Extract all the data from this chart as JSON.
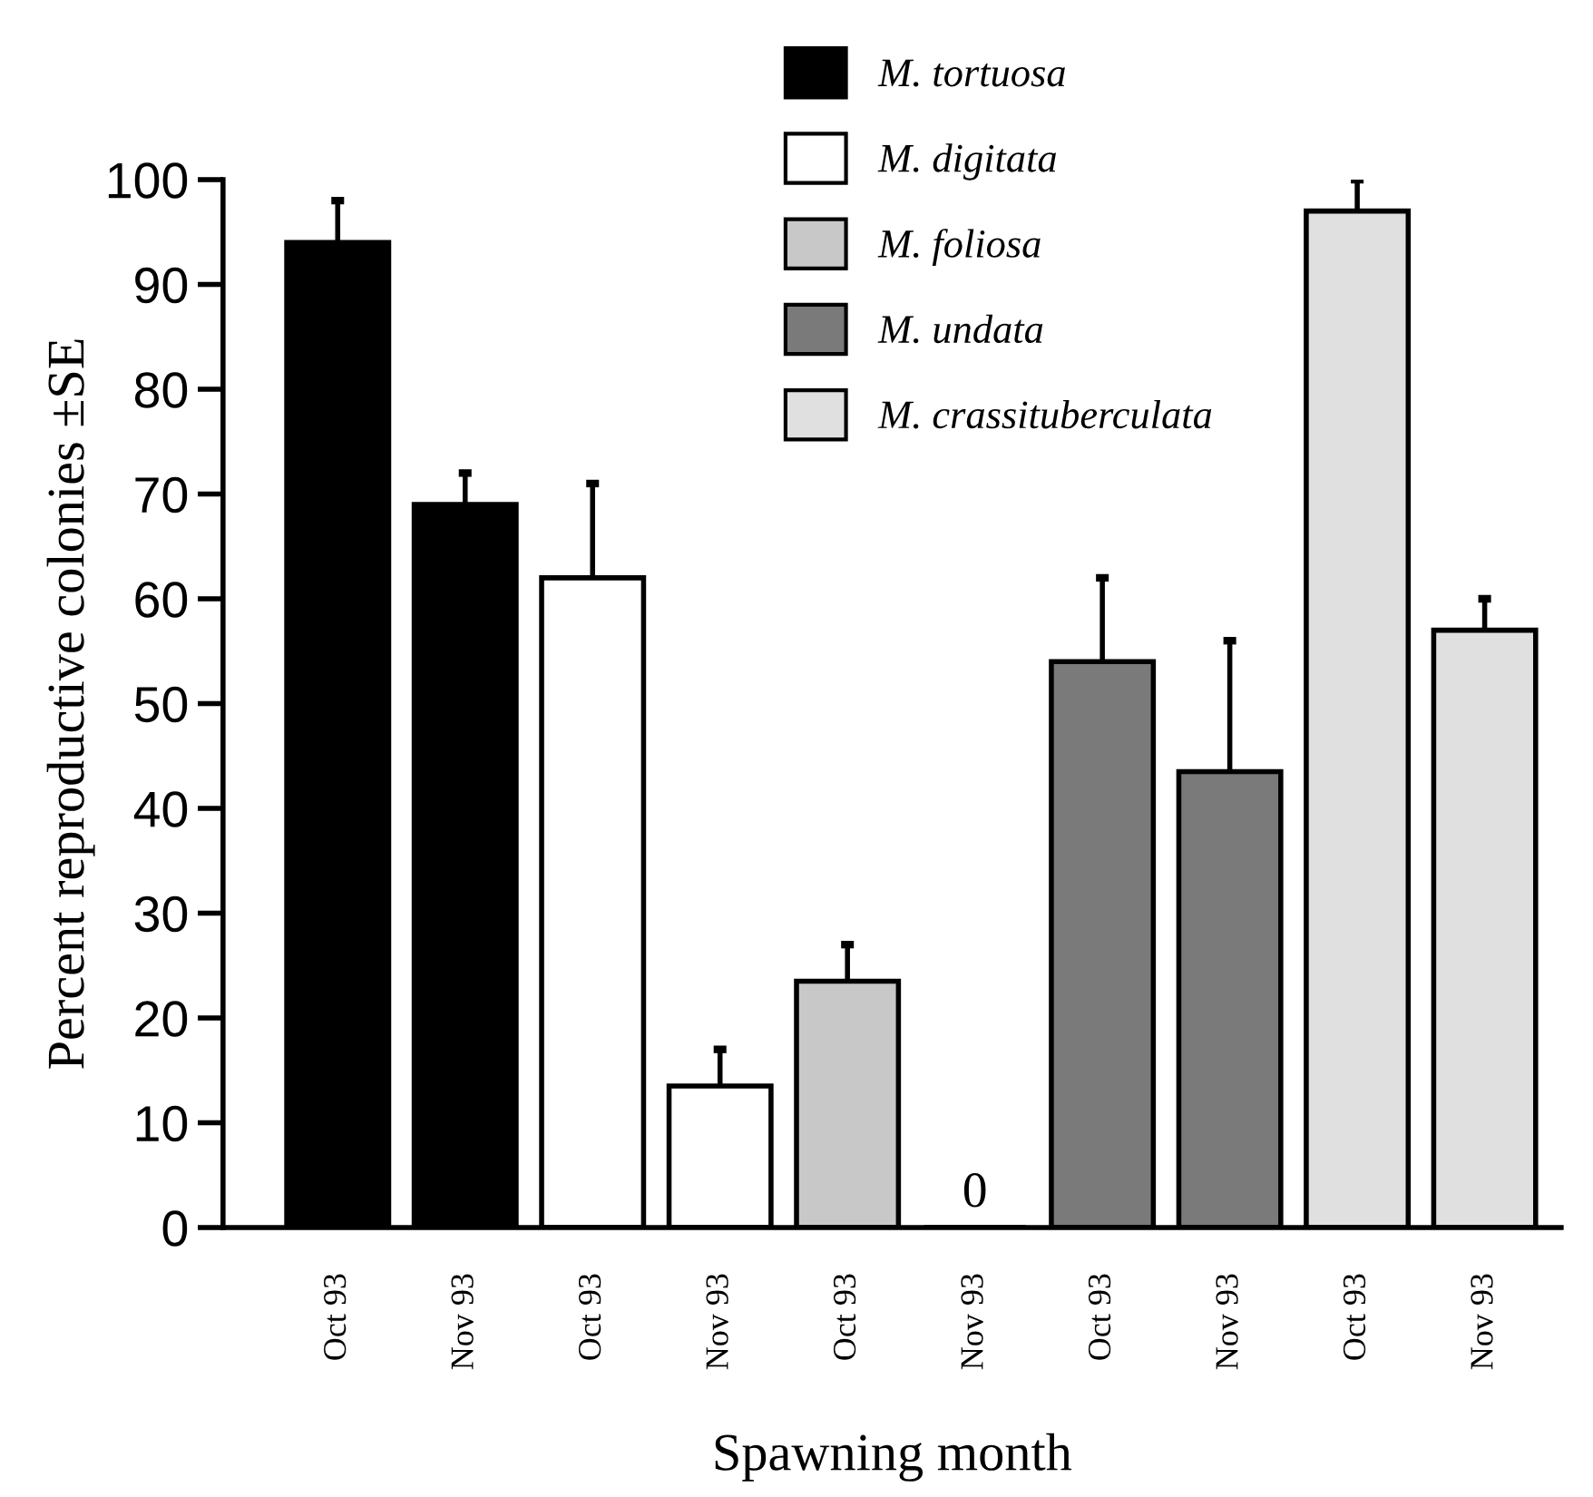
{
  "chart_data": {
    "type": "bar",
    "xlabel": "Spawning month",
    "ylabel": "Percent reproductive colonies ±SE",
    "categories": [
      "Oct 93",
      "Nov 93",
      "Oct 93",
      "Nov 93",
      "Oct 93",
      "Nov 93",
      "Oct 93",
      "Nov 93",
      "Oct 93",
      "Nov 93"
    ],
    "series": [
      {
        "name": "M. tortuosa",
        "color": "#000000",
        "values": [
          94,
          69,
          null,
          null,
          null,
          null,
          null,
          null,
          null,
          null
        ],
        "errors": [
          [
            94,
            98
          ],
          [
            69,
            72
          ],
          null,
          null,
          null,
          null,
          null,
          null,
          null,
          null
        ]
      },
      {
        "name": "M. digitata",
        "color": "#ffffff",
        "values": [
          null,
          null,
          62,
          13.5,
          null,
          null,
          null,
          null,
          null,
          null
        ],
        "errors": [
          null,
          null,
          [
            62,
            71
          ],
          [
            13.5,
            17
          ],
          null,
          null,
          null,
          null,
          null,
          null
        ]
      },
      {
        "name": "M. foliosa",
        "color": "#c8c8c8",
        "values": [
          null,
          null,
          null,
          null,
          23.5,
          0,
          null,
          null,
          null,
          null
        ],
        "errors": [
          null,
          null,
          null,
          null,
          [
            23.5,
            27
          ],
          null,
          null,
          null,
          null,
          null
        ],
        "value_labels": [
          null,
          null,
          null,
          null,
          null,
          "0",
          null,
          null,
          null,
          null
        ]
      },
      {
        "name": "M. undata",
        "color": "#7a7a7a",
        "values": [
          null,
          null,
          null,
          null,
          null,
          null,
          54,
          43.5,
          null,
          null
        ],
        "errors": [
          null,
          null,
          null,
          null,
          null,
          null,
          [
            54,
            62
          ],
          [
            43.5,
            56
          ],
          null,
          null
        ]
      },
      {
        "name": "M. crassituberculata",
        "color": "#e0e0e0",
        "values": [
          null,
          null,
          null,
          null,
          null,
          null,
          null,
          null,
          97,
          57
        ],
        "errors": [
          null,
          null,
          null,
          null,
          null,
          null,
          null,
          null,
          [
            97,
            100
          ],
          [
            57,
            60
          ]
        ]
      }
    ],
    "ylim": [
      0,
      100
    ],
    "yticks": [
      0,
      10,
      20,
      30,
      40,
      50,
      60,
      70,
      80,
      90,
      100
    ],
    "grid": false,
    "legend": "top"
  }
}
